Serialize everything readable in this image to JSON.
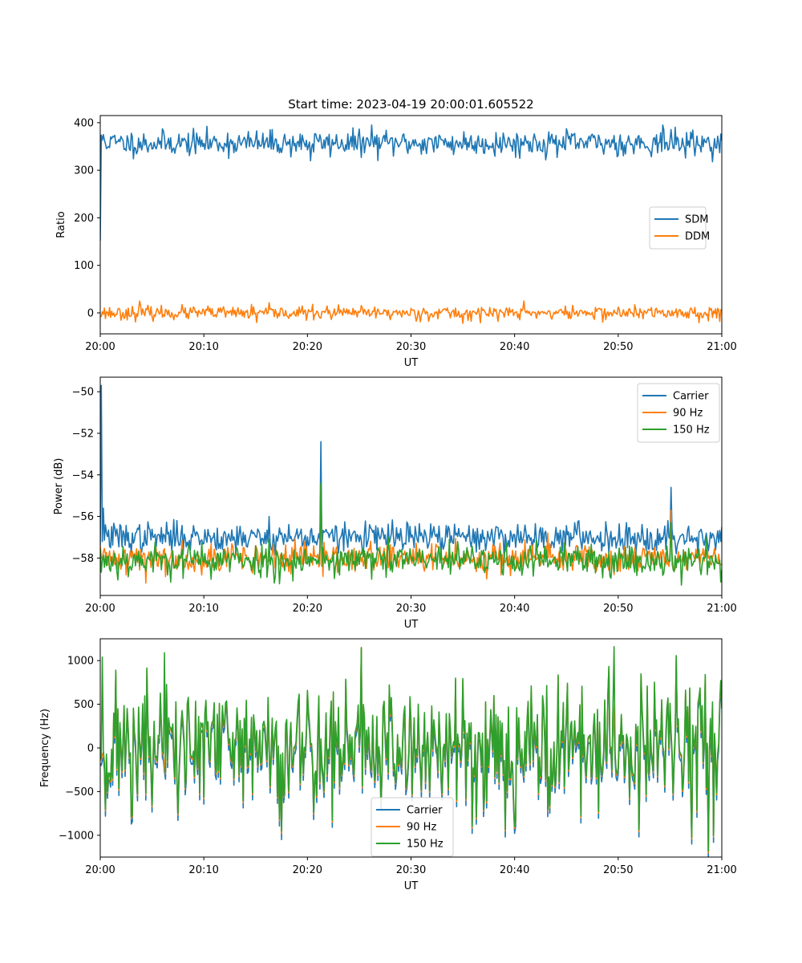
{
  "figure": {
    "title": "Start time: 2023-04-19 20:00:01.605522"
  },
  "colors": {
    "c0": "#1f77b4",
    "c1": "#ff7f0e",
    "c2": "#2ca02c"
  },
  "chart_data": [
    {
      "type": "line",
      "xlabel": "UT",
      "ylabel": "Ratio",
      "xlim": [
        "20:00",
        "21:00"
      ],
      "ylim": [
        -44,
        415
      ],
      "x_ticks": [
        "20:00",
        "20:10",
        "20:20",
        "20:30",
        "20:40",
        "20:50",
        "21:00"
      ],
      "y_ticks": [
        0,
        100,
        200,
        300,
        400
      ],
      "legend": "center-right",
      "series": [
        {
          "name": "SDM",
          "color": "#1f77b4",
          "mean": 357,
          "noise": 13,
          "seed": 11,
          "n": 600,
          "points": [
            [
              0,
              152
            ],
            [
              0.3,
              375
            ],
            [
              0.8,
              350
            ],
            [
              1.0,
              370
            ],
            [
              26.2,
              395
            ],
            [
              54.3,
              395
            ],
            [
              20.3,
              320
            ]
          ]
        },
        {
          "name": "DDM",
          "color": "#ff7f0e",
          "mean": 0,
          "noise": 7,
          "seed": 23,
          "n": 600,
          "points": [
            [
              3.8,
              25
            ],
            [
              15.1,
              -20
            ],
            [
              35.0,
              -22
            ],
            [
              40.9,
              25
            ],
            [
              59.8,
              -18
            ]
          ]
        }
      ]
    },
    {
      "type": "line",
      "xlabel": "UT",
      "ylabel": "Power (dB)",
      "xlim": [
        "20:00",
        "21:00"
      ],
      "ylim": [
        -59.8,
        -49.3
      ],
      "x_ticks": [
        "20:00",
        "20:10",
        "20:20",
        "20:30",
        "20:40",
        "20:50",
        "21:00"
      ],
      "y_ticks": [
        -58,
        -56,
        -54,
        -52,
        -50
      ],
      "legend": "top-right",
      "series": [
        {
          "name": "Carrier",
          "color": "#1f77b4",
          "mean": -57.0,
          "noise": 0.35,
          "seed": 37,
          "n": 600,
          "points": [
            [
              0.1,
              -49.7
            ],
            [
              0.3,
              -55.6
            ],
            [
              0.5,
              -56.4
            ],
            [
              21.3,
              -52.4
            ],
            [
              55.1,
              -54.6
            ],
            [
              54.8,
              -56.2
            ],
            [
              16.3,
              -56.0
            ]
          ]
        },
        {
          "name": "90 Hz",
          "color": "#ff7f0e",
          "mean": -58.0,
          "noise": 0.35,
          "seed": 41,
          "n": 600,
          "points": [
            [
              21.3,
              -54.5
            ],
            [
              55.1,
              -55.7
            ],
            [
              4.4,
              -59.2
            ],
            [
              43.2,
              -56.8
            ]
          ]
        },
        {
          "name": "150 Hz",
          "color": "#2ca02c",
          "mean": -58.1,
          "noise": 0.4,
          "seed": 53,
          "n": 600,
          "points": [
            [
              21.3,
              -54.4
            ],
            [
              16.8,
              -59.2
            ],
            [
              55.1,
              -56.3
            ]
          ]
        }
      ]
    },
    {
      "type": "line",
      "xlabel": "UT",
      "ylabel": "Frequency (Hz)",
      "xlim": [
        "20:00",
        "21:00"
      ],
      "ylim": [
        -1250,
        1250
      ],
      "x_ticks": [
        "20:00",
        "20:10",
        "20:20",
        "20:30",
        "20:40",
        "20:50",
        "21:00"
      ],
      "y_ticks": [
        -1000,
        -500,
        0,
        500,
        1000
      ],
      "legend": "lower-center",
      "series": [
        {
          "name": "Carrier",
          "color": "#1f77b4",
          "mean": -60,
          "noise": 380,
          "seed": 71,
          "n": 600,
          "points": [
            [
              17.5,
              -1050
            ],
            [
              39.1,
              -1020
            ],
            [
              25.2,
              1120
            ]
          ]
        },
        {
          "name": "90 Hz",
          "color": "#ff7f0e",
          "mean": 0,
          "noise": 380,
          "seed": 71,
          "n": 600,
          "points": [
            [
              17.5,
              -980
            ],
            [
              39.1,
              -950
            ],
            [
              25.2,
              1150
            ]
          ]
        },
        {
          "name": "150 Hz",
          "color": "#2ca02c",
          "mean": 20,
          "noise": 380,
          "seed": 71,
          "n": 600,
          "points": [
            [
              17.5,
              -950
            ],
            [
              39.1,
              -930
            ],
            [
              25.2,
              1150
            ],
            [
              49.6,
              1160
            ],
            [
              0.2,
              1040
            ],
            [
              6.2,
              1090
            ]
          ]
        }
      ]
    }
  ]
}
